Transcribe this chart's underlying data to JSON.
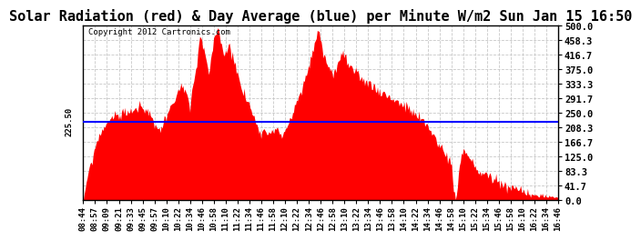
{
  "title": "Solar Radiation (red) & Day Average (blue) per Minute W/m2 Sun Jan 15 16:50",
  "copyright": "Copyright 2012 Cartronics.com",
  "day_average": 225.5,
  "y_min": 0.0,
  "y_max": 500.0,
  "y_ticks": [
    0.0,
    41.7,
    83.3,
    125.0,
    166.7,
    208.3,
    250.0,
    291.7,
    333.3,
    375.0,
    416.7,
    458.3,
    500.0
  ],
  "area_color": "#FF0000",
  "line_color": "#0000FF",
  "background_color": "#FFFFFF",
  "grid_color": "#C8C8C8",
  "title_fontsize": 11,
  "x_tick_labels": [
    "08:44",
    "08:57",
    "09:09",
    "09:21",
    "09:33",
    "09:45",
    "09:57",
    "10:10",
    "10:22",
    "10:34",
    "10:46",
    "10:58",
    "11:10",
    "11:22",
    "11:34",
    "11:46",
    "11:58",
    "12:10",
    "12:22",
    "12:34",
    "12:46",
    "12:58",
    "13:10",
    "13:22",
    "13:34",
    "13:46",
    "13:58",
    "14:10",
    "14:22",
    "14:34",
    "14:46",
    "14:58",
    "15:10",
    "15:22",
    "15:34",
    "15:46",
    "15:58",
    "16:10",
    "16:22",
    "16:34",
    "16:46"
  ]
}
